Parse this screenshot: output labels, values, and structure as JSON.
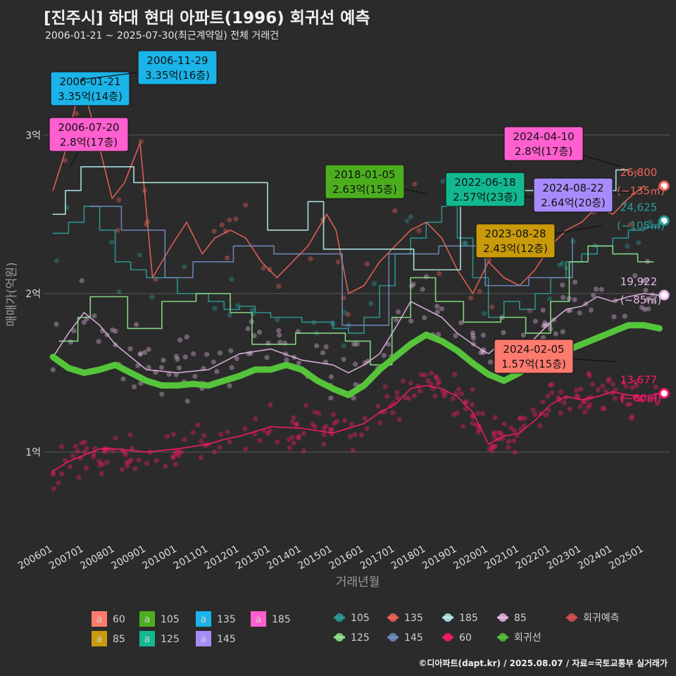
{
  "header": {
    "title": "[진주시] 하대 현대 아파트(1996) 회귀선 예측",
    "subtitle": "2006-01-21 ~ 2025-07-30(최근계약일) 전체 거래건"
  },
  "footer": "©디아파트(dapt.kr) / 2025.08.07 / 자료=국토교통부 실거래가",
  "chart_data": {
    "type": "line",
    "xlabel": "거래년월",
    "ylabel": "매매가(억원)",
    "x_tick_labels": [
      "200601",
      "200701",
      "200801",
      "200901",
      "201001",
      "201101",
      "201201",
      "201301",
      "201401",
      "201501",
      "201601",
      "201701",
      "201801",
      "201901",
      "202001",
      "202101",
      "202201",
      "202301",
      "202401",
      "202501"
    ],
    "y_ticks": [
      {
        "value": 1,
        "label": "1억"
      },
      {
        "value": 2,
        "label": "2억"
      },
      {
        "value": 3,
        "label": "3억"
      }
    ],
    "xlim": [
      2005.7,
      2025.85
    ],
    "ylim": [
      0.44,
      3.55
    ],
    "grid": true,
    "colors": {
      "60": "#ff1a6e",
      "85": "#e6b8e6",
      "105": "#2a9d9a",
      "125": "#8ee68e",
      "135": "#f0645a",
      "145": "#6f8fbf",
      "185": "#b8f0ee",
      "regression": "#55c43a"
    },
    "series": [
      {
        "name": "60",
        "color": "#ff1a6e",
        "x": [
          2006.0,
          2006.5,
          2007.0,
          2007.5,
          2008.0,
          2009.0,
          2010.0,
          2011.0,
          2011.5,
          2012.0,
          2013.0,
          2014.0,
          2015.0,
          2016.0,
          2016.5,
          2017.0,
          2017.5,
          2018.0,
          2018.5,
          2019.0,
          2019.5,
          2020.0,
          2020.5,
          2021.0,
          2021.5,
          2022.0,
          2022.5,
          2023.0,
          2023.5,
          2024.0,
          2024.5,
          2025.0,
          2025.5
        ],
        "y": [
          0.88,
          0.94,
          0.98,
          1.02,
          1.02,
          1.0,
          1.02,
          1.05,
          1.08,
          1.1,
          1.16,
          1.15,
          1.12,
          1.18,
          1.25,
          1.3,
          1.4,
          1.42,
          1.4,
          1.35,
          1.25,
          1.05,
          1.1,
          1.12,
          1.2,
          1.3,
          1.35,
          1.33,
          1.35,
          1.38,
          1.36,
          1.35,
          1.37
        ]
      },
      {
        "name": "85",
        "color": "#e6b8e6",
        "x": [
          2006.0,
          2006.5,
          2007.0,
          2007.5,
          2008.0,
          2009.0,
          2010.0,
          2011.0,
          2012.0,
          2013.0,
          2014.0,
          2015.0,
          2015.5,
          2016.0,
          2016.5,
          2017.0,
          2017.5,
          2018.0,
          2018.5,
          2019.0,
          2019.5,
          2020.0,
          2020.5,
          2021.0,
          2021.5,
          2022.0,
          2022.5,
          2023.0,
          2023.5,
          2024.0,
          2024.5,
          2025.0,
          2025.5
        ],
        "y": [
          1.6,
          1.75,
          1.88,
          1.8,
          1.68,
          1.52,
          1.5,
          1.52,
          1.62,
          1.65,
          1.58,
          1.55,
          1.5,
          1.55,
          1.62,
          1.78,
          1.95,
          1.9,
          1.85,
          1.75,
          1.68,
          1.62,
          1.7,
          1.62,
          1.72,
          1.82,
          1.9,
          1.92,
          1.98,
          1.95,
          1.98,
          2.0,
          1.99
        ]
      },
      {
        "name": "105",
        "color": "#2a9d9a",
        "x": [
          2006.0,
          2006.5,
          2007.0,
          2007.5,
          2008.0,
          2008.5,
          2009.0,
          2010.0,
          2011.0,
          2011.5,
          2012.0,
          2012.5,
          2013.0,
          2014.0,
          2015.0,
          2015.5,
          2016.0,
          2016.5,
          2017.0,
          2017.5,
          2018.0,
          2018.5,
          2019.0,
          2019.5,
          2020.0,
          2020.5,
          2021.0,
          2021.5,
          2022.0,
          2022.5,
          2023.0,
          2023.5,
          2024.0,
          2024.5,
          2025.0,
          2025.5
        ],
        "y": [
          2.38,
          2.45,
          2.55,
          2.4,
          2.2,
          2.15,
          2.1,
          2.0,
          1.95,
          1.9,
          1.92,
          1.88,
          1.85,
          1.82,
          1.78,
          1.75,
          1.85,
          2.05,
          2.25,
          2.35,
          2.45,
          2.55,
          2.35,
          2.1,
          1.85,
          1.95,
          1.9,
          2.0,
          2.1,
          2.2,
          2.25,
          2.3,
          2.35,
          2.4,
          2.42,
          2.46
        ]
      },
      {
        "name": "135",
        "color": "#f0645a",
        "x": [
          2006.0,
          2006.4,
          2006.9,
          2007.4,
          2007.9,
          2008.3,
          2008.8,
          2009.2,
          2009.8,
          2010.3,
          2010.8,
          2011.2,
          2011.7,
          2012.2,
          2012.7,
          2013.2,
          2013.7,
          2014.2,
          2014.8,
          2015.1,
          2015.5,
          2016.0,
          2016.5,
          2017.0,
          2017.5,
          2018.0,
          2018.5,
          2019.0,
          2019.5,
          2020.0,
          2020.5,
          2021.0,
          2021.5,
          2022.0,
          2022.5,
          2023.0,
          2023.5,
          2024.0,
          2024.5,
          2025.0
        ],
        "y": [
          2.65,
          2.9,
          3.35,
          3.0,
          2.6,
          2.7,
          2.95,
          2.1,
          2.3,
          2.45,
          2.25,
          2.35,
          2.4,
          2.35,
          2.2,
          2.1,
          2.2,
          2.3,
          2.5,
          2.4,
          2.0,
          2.05,
          2.2,
          2.3,
          2.4,
          2.45,
          2.35,
          2.15,
          2.0,
          2.2,
          2.1,
          2.05,
          2.15,
          2.3,
          2.4,
          2.45,
          2.55,
          2.5,
          2.6,
          2.68
        ]
      },
      {
        "name": "145",
        "color": "#6f8fbf",
        "x": [
          2007.2,
          2008.2,
          2009.6,
          2010.5,
          2011.8,
          2013.1,
          2015.3,
          2016.8,
          2018.4,
          2019.9,
          2021.3,
          2022.7
        ],
        "y": [
          2.55,
          2.4,
          2.1,
          2.2,
          2.3,
          2.25,
          1.8,
          2.25,
          2.3,
          2.05,
          2.1,
          2.35
        ]
      },
      {
        "name": "125",
        "color": "#8ee68e",
        "x": [
          2006.2,
          2006.8,
          2007.2,
          2008.4,
          2009.5,
          2010.6,
          2011.7,
          2012.4,
          2013.8,
          2015.4,
          2016.2,
          2016.9,
          2017.5,
          2018.3,
          2019.2,
          2020.4,
          2021.2,
          2022.0,
          2022.6,
          2023.2,
          2024.0,
          2024.8,
          2025.3
        ],
        "y": [
          1.7,
          1.85,
          1.98,
          1.78,
          1.95,
          2.0,
          1.88,
          1.68,
          1.75,
          1.7,
          1.55,
          1.85,
          2.1,
          1.95,
          1.82,
          1.85,
          1.75,
          1.95,
          2.2,
          2.3,
          2.25,
          2.2,
          2.2
        ]
      },
      {
        "name": "185",
        "color": "#b8f0ee",
        "x": [
          2006.0,
          2006.4,
          2006.9,
          2008.6,
          2012.9,
          2014.2,
          2014.7,
          2017.6,
          2019.1,
          2024.1,
          2024.5
        ],
        "y": [
          2.5,
          2.65,
          2.8,
          2.7,
          2.4,
          2.58,
          2.28,
          2.15,
          2.65,
          2.78,
          2.78
        ]
      },
      {
        "name": "회귀선",
        "color": "#55c43a",
        "x": [
          2006.0,
          2006.5,
          2007.0,
          2007.5,
          2008.0,
          2008.5,
          2009.0,
          2009.5,
          2010.0,
          2010.5,
          2011.0,
          2011.5,
          2012.0,
          2012.5,
          2013.0,
          2013.5,
          2014.0,
          2014.5,
          2015.0,
          2015.5,
          2016.0,
          2016.5,
          2017.0,
          2017.5,
          2018.0,
          2018.5,
          2019.0,
          2019.5,
          2020.0,
          2020.5,
          2021.0,
          2021.5,
          2022.0,
          2022.5,
          2023.0,
          2023.5,
          2024.0,
          2024.5,
          2025.0,
          2025.5
        ],
        "y": [
          1.6,
          1.53,
          1.5,
          1.52,
          1.55,
          1.5,
          1.45,
          1.42,
          1.42,
          1.43,
          1.42,
          1.45,
          1.48,
          1.52,
          1.52,
          1.55,
          1.52,
          1.45,
          1.4,
          1.36,
          1.42,
          1.52,
          1.6,
          1.68,
          1.74,
          1.7,
          1.64,
          1.56,
          1.49,
          1.45,
          1.5,
          1.57,
          1.62,
          1.64,
          1.68,
          1.72,
          1.76,
          1.8,
          1.8,
          1.78
        ]
      }
    ],
    "annotations": [
      {
        "date": "2006-01-21",
        "price": "3.35억(14층)",
        "color": "#1ab4e8",
        "x": 2006.06,
        "y": 3.35
      },
      {
        "date": "2006-11-29",
        "price": "3.35억(16층)",
        "color": "#1ab4e8",
        "x": 2006.9,
        "y": 3.35
      },
      {
        "date": "2006-07-20",
        "price": "2.8억(17층)",
        "color": "#ff5fcf",
        "x": 2006.55,
        "y": 2.8
      },
      {
        "date": "2018-01-05",
        "price": "2.63억(15층)",
        "color": "#4cae1e",
        "x": 2018.01,
        "y": 2.63
      },
      {
        "date": "2022-06-18",
        "price": "2.57억(23층)",
        "color": "#12b890",
        "x": 2022.46,
        "y": 2.57
      },
      {
        "date": "2024-04-10",
        "price": "2.8억(17층)",
        "color": "#ff5fcf",
        "x": 2024.27,
        "y": 2.8
      },
      {
        "date": "2024-08-22",
        "price": "2.64억(20층)",
        "color": "#a78bfa",
        "x": 2024.64,
        "y": 2.64
      },
      {
        "date": "2023-08-28",
        "price": "2.43억(12층)",
        "color": "#c99a0a",
        "x": 2023.65,
        "y": 2.43
      },
      {
        "date": "2024-02-05",
        "price": "1.57억(15층)",
        "color": "#ff7a6e",
        "x": 2024.1,
        "y": 1.57
      }
    ],
    "end_labels": [
      {
        "value": "26,800",
        "area": "(~135㎡)",
        "y": 2.68,
        "color": "#f0645a"
      },
      {
        "value": "24,625",
        "area": "(~105㎡)",
        "y": 2.46,
        "color": "#2a9d9a"
      },
      {
        "value": "19,922",
        "area": "(~85㎡)",
        "y": 1.99,
        "color": "#e6b8e6"
      },
      {
        "value": "13,677",
        "area": "(~60㎡)",
        "y": 1.37,
        "color": "#ff1a6e"
      }
    ],
    "legend_area": [
      {
        "key": "60",
        "color": "#ff7a6e"
      },
      {
        "key": "105",
        "color": "#4cae1e"
      },
      {
        "key": "135",
        "color": "#1ab4e8"
      },
      {
        "key": "185",
        "color": "#ff5fcf"
      },
      {
        "key": "85",
        "color": "#c99a0a"
      },
      {
        "key": "125",
        "color": "#12b890"
      },
      {
        "key": "145",
        "color": "#a78bfa"
      }
    ],
    "legend_area_glyph": "a",
    "legend_series": [
      {
        "key": "105",
        "color": "#2a9d9a"
      },
      {
        "key": "135",
        "color": "#f0645a"
      },
      {
        "key": "185",
        "color": "#b8f0ee"
      },
      {
        "key": "85",
        "color": "#e6b8e6"
      },
      {
        "key": "회귀예측",
        "color": "#d9534f"
      },
      {
        "key": "125",
        "color": "#8ee68e"
      },
      {
        "key": "145",
        "color": "#6f8fbf"
      },
      {
        "key": "60",
        "color": "#ff1a6e"
      },
      {
        "key": "회귀선",
        "color": "#55c43a"
      }
    ]
  }
}
